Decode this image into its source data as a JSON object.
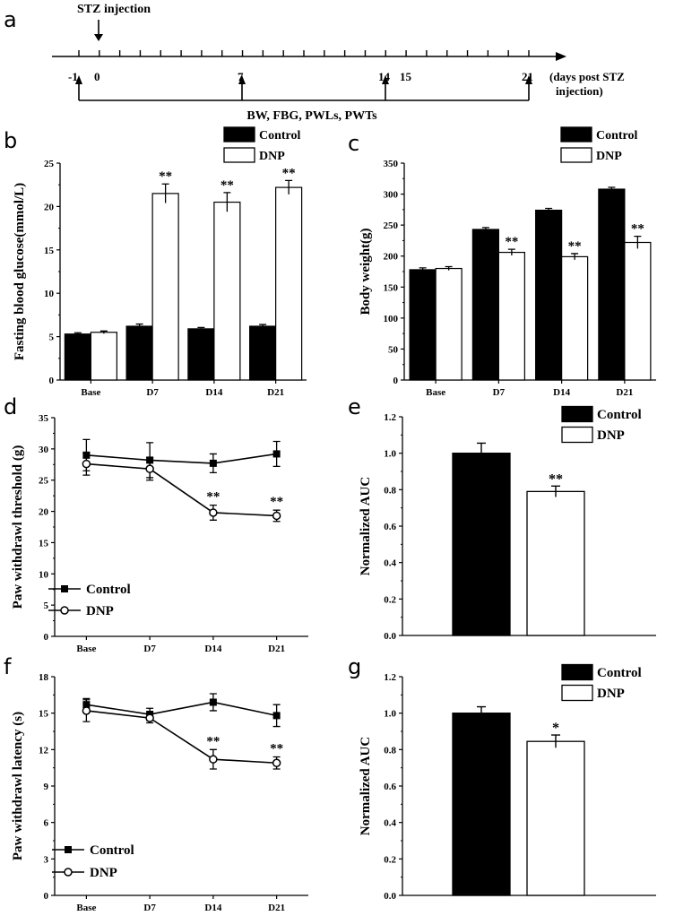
{
  "timeline": {
    "label": "a",
    "stz_label": "STZ injection",
    "ticks": [
      "-1",
      "0",
      "7",
      "14",
      "15",
      "21"
    ],
    "unit_line1": "(days post STZ",
    "unit_line2": "injection)",
    "measures": "BW, FBG, PWLs, PWTs"
  },
  "chart_data": [
    {
      "id": "b",
      "label": "b",
      "type": "bar",
      "title": "",
      "xlabel": "",
      "ylabel": "Fasting blood glucose(mmol/L)",
      "categories": [
        "Base",
        "D7",
        "D14",
        "D21"
      ],
      "ylim": [
        0,
        25
      ],
      "yticks": [
        "0",
        "5",
        "10",
        "15",
        "20",
        "25"
      ],
      "series": [
        {
          "name": "Control",
          "color": "#000000",
          "values": [
            5.3,
            6.2,
            5.9,
            6.2
          ],
          "errors": [
            0.15,
            0.25,
            0.15,
            0.2
          ],
          "sig": [
            "",
            "",
            "",
            ""
          ]
        },
        {
          "name": "DNP",
          "color": "#ffffff",
          "values": [
            5.5,
            21.5,
            20.5,
            22.2
          ],
          "errors": [
            0.15,
            1.1,
            1.1,
            0.8
          ],
          "sig": [
            "",
            "**",
            "**",
            "**"
          ]
        }
      ],
      "legend": [
        "Control",
        "DNP"
      ]
    },
    {
      "id": "c",
      "label": "c",
      "type": "bar",
      "title": "",
      "xlabel": "",
      "ylabel": "Body weight(g)",
      "categories": [
        "Base",
        "D7",
        "D14",
        "D21"
      ],
      "ylim": [
        0,
        350
      ],
      "yticks": [
        "0",
        "50",
        "100",
        "150",
        "200",
        "250",
        "300",
        "350"
      ],
      "series": [
        {
          "name": "Control",
          "color": "#000000",
          "values": [
            178,
            243,
            274,
            308
          ],
          "errors": [
            3,
            3,
            3,
            3
          ],
          "sig": [
            "",
            "",
            "",
            ""
          ]
        },
        {
          "name": "DNP",
          "color": "#ffffff",
          "values": [
            180,
            206,
            199,
            222
          ],
          "errors": [
            3,
            5,
            5,
            10
          ],
          "sig": [
            "",
            "**",
            "**",
            "**"
          ]
        }
      ],
      "legend": [
        "Control",
        "DNP"
      ]
    },
    {
      "id": "d",
      "label": "d",
      "type": "line",
      "title": "",
      "xlabel": "",
      "ylabel": "Paw withdrawl threshold (g)",
      "categories": [
        "Base",
        "D7",
        "D14",
        "D21"
      ],
      "ylim": [
        0,
        35
      ],
      "yticks": [
        "0",
        "5",
        "10",
        "15",
        "20",
        "25",
        "30",
        "35"
      ],
      "series": [
        {
          "name": "Control",
          "marker": "square",
          "values": [
            29,
            28.2,
            27.7,
            29.2
          ],
          "errors": [
            2.5,
            2.8,
            1.5,
            2.0
          ],
          "sig": [
            "",
            "",
            "",
            ""
          ]
        },
        {
          "name": "DNP",
          "marker": "circle",
          "values": [
            27.6,
            26.8,
            19.8,
            19.3
          ],
          "errors": [
            1.8,
            1.8,
            1.2,
            0.9
          ],
          "sig": [
            "",
            "",
            "**",
            "**"
          ]
        }
      ],
      "legend": [
        "Control",
        "DNP"
      ]
    },
    {
      "id": "e",
      "label": "e",
      "type": "bar",
      "title": "",
      "xlabel": "",
      "ylabel": "Normalized AUC",
      "categories": [
        ""
      ],
      "ylim": [
        0,
        1.2
      ],
      "yticks": [
        "0.0",
        "0.2",
        "0.4",
        "0.6",
        "0.8",
        "1.0",
        "1.2"
      ],
      "series": [
        {
          "name": "Control",
          "color": "#000000",
          "values": [
            1.0
          ],
          "errors": [
            0.055
          ],
          "sig": [
            ""
          ]
        },
        {
          "name": "DNP",
          "color": "#ffffff",
          "values": [
            0.79
          ],
          "errors": [
            0.03
          ],
          "sig": [
            "**"
          ]
        }
      ],
      "legend": [
        "Control",
        "DNP"
      ]
    },
    {
      "id": "f",
      "label": "f",
      "type": "line",
      "title": "",
      "xlabel": "",
      "ylabel": "Paw withdrawl latency (s)",
      "categories": [
        "Base",
        "D7",
        "D14",
        "D21"
      ],
      "ylim": [
        0,
        18
      ],
      "yticks": [
        "0",
        "3",
        "6",
        "9",
        "12",
        "15",
        "18"
      ],
      "series": [
        {
          "name": "Control",
          "marker": "square",
          "values": [
            15.7,
            14.9,
            15.9,
            14.8
          ],
          "errors": [
            0.5,
            0.5,
            0.7,
            0.9
          ],
          "sig": [
            "",
            "",
            "",
            ""
          ]
        },
        {
          "name": "DNP",
          "marker": "circle",
          "values": [
            15.2,
            14.6,
            11.2,
            10.9
          ],
          "errors": [
            0.9,
            0.4,
            0.8,
            0.5
          ],
          "sig": [
            "",
            "",
            "**",
            "**"
          ]
        }
      ],
      "legend": [
        "Control",
        "DNP"
      ]
    },
    {
      "id": "g",
      "label": "g",
      "type": "bar",
      "title": "",
      "xlabel": "",
      "ylabel": "Normalized AUC",
      "categories": [
        ""
      ],
      "ylim": [
        0,
        1.2
      ],
      "yticks": [
        "0.0",
        "0.2",
        "0.4",
        "0.6",
        "0.8",
        "1.0",
        "1.2"
      ],
      "series": [
        {
          "name": "Control",
          "color": "#000000",
          "values": [
            1.0
          ],
          "errors": [
            0.035
          ],
          "sig": [
            ""
          ]
        },
        {
          "name": "DNP",
          "color": "#ffffff",
          "values": [
            0.845
          ],
          "errors": [
            0.035
          ],
          "sig": [
            "*"
          ]
        }
      ],
      "legend": [
        "Control",
        "DNP"
      ]
    }
  ]
}
